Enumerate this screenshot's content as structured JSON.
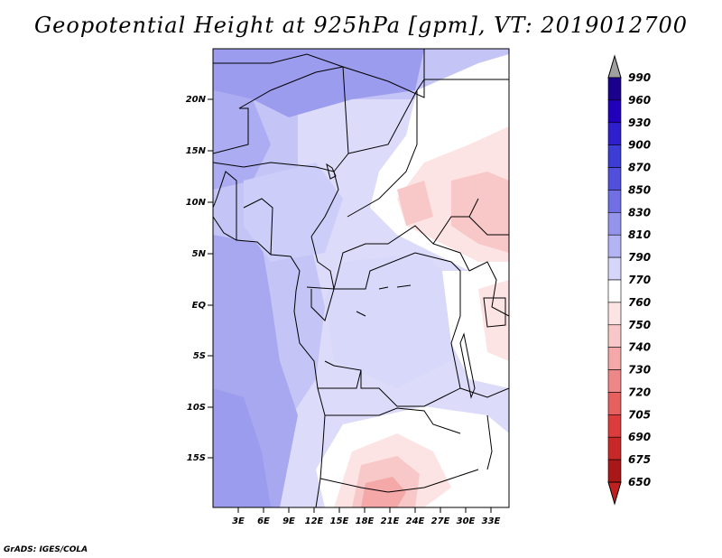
{
  "title": "Geopotential Height at 925hPa [gpm], VT: 2019012700",
  "credit": "GrADS: IGES/COLA",
  "lat_labels": [
    "20N",
    "15N",
    "10N",
    "5N",
    "EQ",
    "5S",
    "10S",
    "15S"
  ],
  "lon_labels": [
    "3E",
    "6E",
    "9E",
    "12E",
    "15E",
    "18E",
    "21E",
    "24E",
    "27E",
    "30E",
    "33E"
  ],
  "colorbar": {
    "labels": [
      "990",
      "960",
      "930",
      "900",
      "870",
      "850",
      "830",
      "810",
      "790",
      "770",
      "760",
      "750",
      "740",
      "730",
      "720",
      "705",
      "690",
      "675",
      "650"
    ],
    "colors": [
      "#8888ee",
      "#1a008c",
      "#2200bb",
      "#2e1ecc",
      "#3c3dd4",
      "#5050dc",
      "#7070e4",
      "#9494ec",
      "#b4b4f4",
      "#d6d6fa",
      "#ffffff",
      "#fde4e4",
      "#f8c8c8",
      "#f4a8a8",
      "#ee8888",
      "#e66060",
      "#dc3c3c",
      "#c82828",
      "#a81818"
    ],
    "top_arrow_color": "#a0a0a0",
    "bottom_arrow_color": "#c02020"
  },
  "field_colors": {
    "h850": "#9494ec",
    "h830": "#a4a4f0",
    "h810": "#b4b4f4",
    "h790": "#c4c4f6",
    "h770": "#dcdcfa",
    "h760": "#ffffff",
    "h750": "#fde4e4",
    "h740": "#f8c8c8",
    "h730": "#f4a8a8"
  }
}
